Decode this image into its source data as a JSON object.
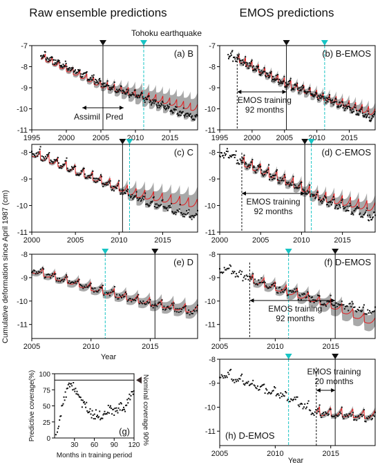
{
  "figure": {
    "left_title": "Raw ensemble predictions",
    "right_title": "EMOS predictions",
    "earthquake_label": "Tohoku earthquake",
    "ylabel": "Cumulative deformation since April 1987 (cm)",
    "colors": {
      "observed": "#111111",
      "ensemble_band": "#a9a9a9",
      "ensemble_mean": "#e41a1c",
      "earthquake_line": "#17c4c4",
      "marker_black": "#111111",
      "frame": "#000000"
    }
  },
  "chart_data": [
    {
      "id": "a",
      "type": "line",
      "label": "(a) B",
      "xlim": [
        1995,
        2019
      ],
      "ylim": [
        -11,
        -7
      ],
      "xticks": [
        1995,
        2000,
        2005,
        2010,
        2015
      ],
      "yticks": [
        -11,
        -10,
        -9,
        -8,
        -7
      ],
      "pred_start": 1996.3,
      "data_start": 1996.3,
      "obs_noise": 0.12,
      "assim_end": 2005.3,
      "earthquake": 2011.2,
      "annotations": {
        "left": "Assimil",
        "right": "Pred"
      },
      "series": [
        {
          "role": "observed",
          "trend": [
            [
              1996,
              -7.3
            ],
            [
              2005,
              -8.7
            ],
            [
              2011,
              -9.4
            ],
            [
              2019,
              -10.4
            ]
          ]
        },
        {
          "role": "mean",
          "trend": [
            [
              1996,
              -7.4
            ],
            [
              2005,
              -8.8
            ],
            [
              2011,
              -9.3
            ],
            [
              2019,
              -9.95
            ]
          ]
        },
        {
          "role": "band_halfwidth",
          "trend": [
            [
              1996,
              0.05
            ],
            [
              2005,
              0.15
            ],
            [
              2011,
              0.4
            ],
            [
              2019,
              0.55
            ]
          ]
        }
      ]
    },
    {
      "id": "b",
      "type": "line",
      "label": "(b) B-EMOS",
      "xlim": [
        1995,
        2019
      ],
      "ylim": [
        -11,
        -7
      ],
      "xticks": [
        1995,
        2000,
        2005,
        2010,
        2015
      ],
      "yticks": [
        -11,
        -10,
        -9,
        -8,
        -7
      ],
      "pred_start": 1997.7,
      "data_start": 1996.3,
      "obs_noise": 0.14,
      "training_start": 1997.7,
      "assim_end": 2005.3,
      "earthquake": 2011.2,
      "annotations": {
        "training": "EMOS training",
        "months": "92 months"
      },
      "series": [
        {
          "role": "observed",
          "trend": [
            [
              1996,
              -7.3
            ],
            [
              2005,
              -8.7
            ],
            [
              2011,
              -9.4
            ],
            [
              2019,
              -10.4
            ]
          ]
        },
        {
          "role": "mean",
          "trend": [
            [
              1997.7,
              -7.55
            ],
            [
              2005,
              -8.7
            ],
            [
              2011,
              -9.4
            ],
            [
              2019,
              -10.15
            ]
          ]
        },
        {
          "role": "band_halfwidth",
          "trend": [
            [
              1997.7,
              0.15
            ],
            [
              2011,
              0.22
            ],
            [
              2019,
              0.28
            ]
          ]
        }
      ]
    },
    {
      "id": "c",
      "type": "line",
      "label": "(c) C",
      "xlim": [
        2000,
        2019
      ],
      "ylim": [
        -11,
        -7.7
      ],
      "xticks": [
        2000,
        2005,
        2010,
        2015
      ],
      "yticks": [
        -11,
        -10,
        -9,
        -8
      ],
      "pred_start": 2000,
      "data_start": 2000,
      "obs_noise": 0.1,
      "assim_end": 2010.4,
      "earthquake": 2011.2,
      "series": [
        {
          "role": "observed",
          "trend": [
            [
              2000,
              -7.9
            ],
            [
              2010,
              -9.3
            ],
            [
              2012,
              -9.65
            ],
            [
              2019,
              -10.4
            ]
          ]
        },
        {
          "role": "mean",
          "trend": [
            [
              2000,
              -7.95
            ],
            [
              2010,
              -9.25
            ],
            [
              2012,
              -9.5
            ],
            [
              2019,
              -9.9
            ]
          ]
        },
        {
          "role": "band_halfwidth",
          "trend": [
            [
              2000,
              0.05
            ],
            [
              2010,
              0.1
            ],
            [
              2012,
              0.3
            ],
            [
              2019,
              0.45
            ]
          ]
        }
      ]
    },
    {
      "id": "d",
      "type": "line",
      "label": "(d) C-EMOS",
      "xlim": [
        2000,
        2019
      ],
      "ylim": [
        -11,
        -7.7
      ],
      "xticks": [
        2000,
        2005,
        2010,
        2015
      ],
      "yticks": [
        -11,
        -10,
        -9,
        -8
      ],
      "pred_start": 2002.7,
      "data_start": 2000,
      "obs_noise": 0.12,
      "training_start": 2002.7,
      "assim_end": 2010.4,
      "earthquake": 2011.2,
      "annotations": {
        "training": "EMOS training",
        "months": "92 months"
      },
      "series": [
        {
          "role": "observed",
          "trend": [
            [
              2000,
              -7.9
            ],
            [
              2010,
              -9.3
            ],
            [
              2012,
              -9.65
            ],
            [
              2019,
              -10.4
            ]
          ]
        },
        {
          "role": "mean",
          "trend": [
            [
              2002.7,
              -8.3
            ],
            [
              2010,
              -9.25
            ],
            [
              2012,
              -9.6
            ],
            [
              2019,
              -10.05
            ]
          ]
        },
        {
          "role": "band_halfwidth",
          "trend": [
            [
              2002.7,
              0.12
            ],
            [
              2012,
              0.2
            ],
            [
              2019,
              0.28
            ]
          ]
        }
      ]
    },
    {
      "id": "e",
      "type": "line",
      "label": "(e) D",
      "xlim": [
        2005,
        2019
      ],
      "ylim": [
        -11.6,
        -8
      ],
      "xticks": [
        2005,
        2010,
        2015
      ],
      "yticks": [
        -11,
        -10,
        -9,
        -8
      ],
      "pred_start": 2005,
      "data_start": 2005,
      "obs_noise": 0.1,
      "assim_end": 2015.4,
      "earthquake": 2011.2,
      "series": [
        {
          "role": "observed",
          "trend": [
            [
              2005,
              -8.6
            ],
            [
              2011,
              -9.5
            ],
            [
              2015,
              -10.05
            ],
            [
              2019,
              -10.4
            ]
          ]
        },
        {
          "role": "mean",
          "trend": [
            [
              2005,
              -8.6
            ],
            [
              2011,
              -9.5
            ],
            [
              2015,
              -10.0
            ],
            [
              2019,
              -10.35
            ]
          ]
        },
        {
          "role": "band_halfwidth",
          "trend": [
            [
              2005,
              0.12
            ],
            [
              2015,
              0.22
            ],
            [
              2019,
              0.3
            ]
          ]
        }
      ]
    },
    {
      "id": "f",
      "type": "line",
      "label": "(f) D-EMOS",
      "xlim": [
        2005,
        2019
      ],
      "ylim": [
        -11.6,
        -8
      ],
      "xticks": [
        2005,
        2010,
        2015
      ],
      "yticks": [
        -11,
        -10,
        -9,
        -8
      ],
      "pred_start": 2007.7,
      "data_start": 2005,
      "obs_noise": 0.14,
      "training_start": 2007.7,
      "assim_end": 2015.4,
      "earthquake": 2011.2,
      "annotations": {
        "training": "EMOS training",
        "months": "92 months"
      },
      "series": [
        {
          "role": "observed",
          "trend": [
            [
              2005,
              -8.5
            ],
            [
              2011,
              -9.5
            ],
            [
              2015,
              -10.05
            ],
            [
              2019,
              -10.4
            ]
          ]
        },
        {
          "role": "mean",
          "trend": [
            [
              2007.7,
              -9.0
            ],
            [
              2011,
              -9.5
            ],
            [
              2015,
              -10.1
            ],
            [
              2019,
              -10.9
            ]
          ]
        },
        {
          "role": "band_halfwidth",
          "trend": [
            [
              2007.7,
              0.15
            ],
            [
              2015,
              0.3
            ],
            [
              2019,
              0.35
            ]
          ]
        }
      ]
    },
    {
      "id": "g",
      "type": "scatter",
      "label": "(g)",
      "xlim": [
        0,
        120
      ],
      "ylim": [
        0,
        100
      ],
      "xticks": [
        30,
        60,
        90,
        120
      ],
      "yticks": [
        0,
        25,
        50,
        75,
        100
      ],
      "xlabel": "Months in training period",
      "ylabel": "Predictive coverage(%)",
      "nominal_level": 90,
      "nominal_label": "Nominal coverage 90%",
      "series": [
        {
          "role": "coverage",
          "trend": [
            [
              4,
              2
            ],
            [
              10,
              40
            ],
            [
              16,
              65
            ],
            [
              22,
              80
            ],
            [
              28,
              82
            ],
            [
              34,
              72
            ],
            [
              40,
              55
            ],
            [
              46,
              55
            ],
            [
              52,
              40
            ],
            [
              58,
              35
            ],
            [
              64,
              38
            ],
            [
              70,
              35
            ],
            [
              76,
              40
            ],
            [
              82,
              45
            ],
            [
              88,
              40
            ],
            [
              94,
              45
            ],
            [
              100,
              50
            ],
            [
              106,
              45
            ],
            [
              112,
              60
            ],
            [
              118,
              75
            ]
          ]
        }
      ]
    },
    {
      "id": "h",
      "type": "line",
      "label": "(h) D-EMOS",
      "xlim": [
        2005,
        2019
      ],
      "ylim": [
        -11.6,
        -8
      ],
      "xticks": [
        2005,
        2010,
        2015
      ],
      "yticks": [
        -11,
        -10,
        -9,
        -8
      ],
      "pred_start": 2013.7,
      "data_start": 2005,
      "obs_noise": 0.12,
      "training_start": 2013.7,
      "assim_end": 2015.4,
      "earthquake": 2011.2,
      "annotations": {
        "training": "EMOS training",
        "months": "20 months"
      },
      "series": [
        {
          "role": "observed",
          "trend": [
            [
              2005,
              -8.5
            ],
            [
              2011,
              -9.5
            ],
            [
              2013.7,
              -10.15
            ],
            [
              2019,
              -10.4
            ]
          ]
        },
        {
          "role": "mean",
          "trend": [
            [
              2013.7,
              -10.15
            ],
            [
              2019,
              -10.3
            ]
          ]
        },
        {
          "role": "band_halfwidth",
          "trend": [
            [
              2013.7,
              0.1
            ],
            [
              2019,
              0.12
            ]
          ]
        }
      ]
    }
  ],
  "shared_axis": {
    "xlabel": "Year"
  }
}
